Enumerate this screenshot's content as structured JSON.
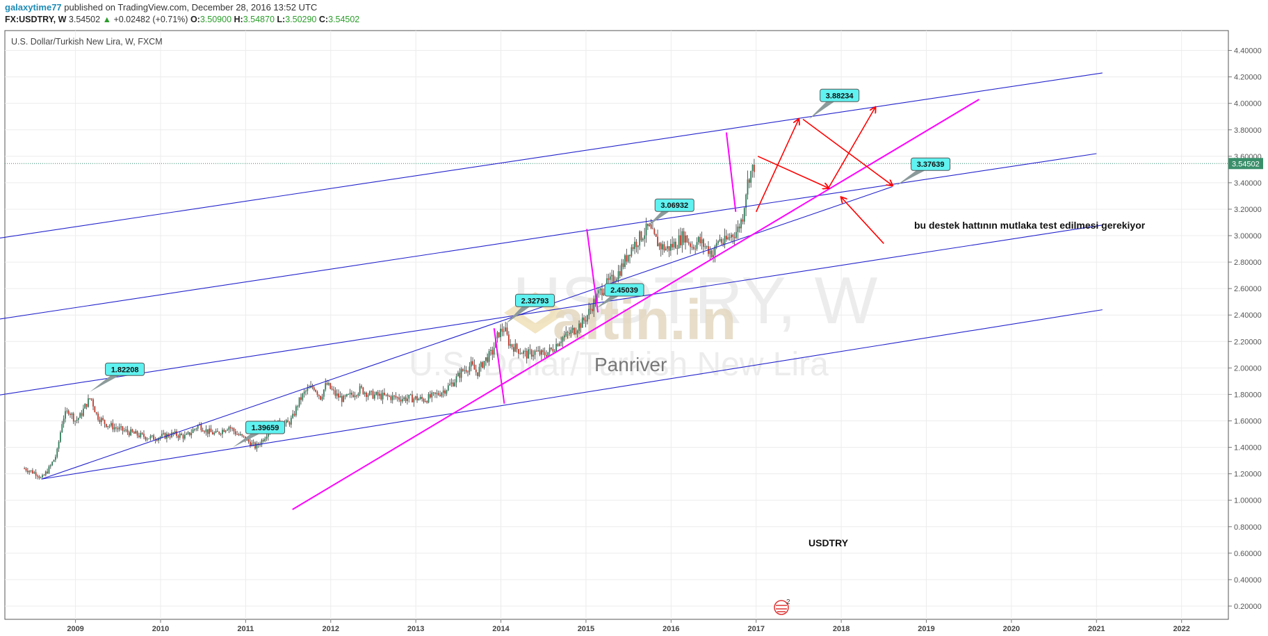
{
  "header": {
    "user": "galaxytime77",
    "published": "published on TradingView.com, December 28, 2016 13:52 UTC",
    "symbol": "FX:USDTRY, W",
    "last": "3.54502",
    "change": "+0.02482 (+0.71%)",
    "o_label": "O:",
    "o_value": "3.50900",
    "h_label": "H:",
    "h_value": "3.54870",
    "l_label": "L:",
    "l_value": "3.50290",
    "c_label": "C:",
    "c_value": "3.54502"
  },
  "chart_data": {
    "type": "candlestick",
    "title": "U.S. Dollar/Turkish New Lira, W, FXCM",
    "watermark_symbol": "USDTRY, W",
    "watermark_name": "U.S. Dollar/Turkish New Lira",
    "logo_text": "altin.in",
    "logo_sub": "Panriver",
    "y_ticks": [
      "0.20000",
      "0.40000",
      "0.60000",
      "0.80000",
      "1.00000",
      "1.20000",
      "1.40000",
      "1.60000",
      "1.80000",
      "2.00000",
      "2.20000",
      "2.40000",
      "2.60000",
      "2.80000",
      "3.00000",
      "3.20000",
      "3.40000",
      "3.60000",
      "3.80000",
      "4.00000",
      "4.20000",
      "4.40000"
    ],
    "ylim": [
      0.1,
      4.55
    ],
    "x_ticks": [
      "2009",
      "2010",
      "2011",
      "2012",
      "2013",
      "2014",
      "2015",
      "2016",
      "2017",
      "2018",
      "2019",
      "2020",
      "2021",
      "2022"
    ],
    "xlim": [
      2008.17,
      2022.55
    ],
    "last_price": "3.54502",
    "price_series": [
      [
        2008.4,
        1.24
      ],
      [
        2008.55,
        1.2
      ],
      [
        2008.6,
        1.16
      ],
      [
        2008.7,
        1.25
      ],
      [
        2008.78,
        1.35
      ],
      [
        2008.85,
        1.62
      ],
      [
        2008.92,
        1.68
      ],
      [
        2009.0,
        1.6
      ],
      [
        2009.06,
        1.64
      ],
      [
        2009.12,
        1.72
      ],
      [
        2009.18,
        1.78
      ],
      [
        2009.25,
        1.64
      ],
      [
        2009.35,
        1.58
      ],
      [
        2009.5,
        1.54
      ],
      [
        2009.6,
        1.52
      ],
      [
        2009.75,
        1.49
      ],
      [
        2009.9,
        1.47
      ],
      [
        2010.0,
        1.48
      ],
      [
        2010.15,
        1.5
      ],
      [
        2010.3,
        1.48
      ],
      [
        2010.45,
        1.57
      ],
      [
        2010.55,
        1.52
      ],
      [
        2010.65,
        1.5
      ],
      [
        2010.8,
        1.56
      ],
      [
        2010.9,
        1.5
      ],
      [
        2011.0,
        1.46
      ],
      [
        2011.08,
        1.42
      ],
      [
        2011.12,
        1.4
      ],
      [
        2011.2,
        1.46
      ],
      [
        2011.3,
        1.56
      ],
      [
        2011.4,
        1.58
      ],
      [
        2011.5,
        1.58
      ],
      [
        2011.55,
        1.62
      ],
      [
        2011.62,
        1.74
      ],
      [
        2011.7,
        1.82
      ],
      [
        2011.8,
        1.86
      ],
      [
        2011.88,
        1.78
      ],
      [
        2011.95,
        1.88
      ],
      [
        2012.05,
        1.8
      ],
      [
        2012.15,
        1.76
      ],
      [
        2012.25,
        1.8
      ],
      [
        2012.35,
        1.84
      ],
      [
        2012.45,
        1.8
      ],
      [
        2012.55,
        1.79
      ],
      [
        2012.7,
        1.78
      ],
      [
        2012.85,
        1.77
      ],
      [
        2013.0,
        1.77
      ],
      [
        2013.1,
        1.76
      ],
      [
        2013.25,
        1.8
      ],
      [
        2013.35,
        1.84
      ],
      [
        2013.45,
        1.9
      ],
      [
        2013.55,
        1.98
      ],
      [
        2013.65,
        2.02
      ],
      [
        2013.72,
        1.96
      ],
      [
        2013.8,
        2.05
      ],
      [
        2013.9,
        2.12
      ],
      [
        2013.97,
        2.26
      ],
      [
        2014.04,
        2.3
      ],
      [
        2014.1,
        2.18
      ],
      [
        2014.2,
        2.14
      ],
      [
        2014.3,
        2.1
      ],
      [
        2014.4,
        2.12
      ],
      [
        2014.5,
        2.1
      ],
      [
        2014.6,
        2.14
      ],
      [
        2014.7,
        2.22
      ],
      [
        2014.8,
        2.26
      ],
      [
        2014.88,
        2.3
      ],
      [
        2014.95,
        2.34
      ],
      [
        2015.0,
        2.38
      ],
      [
        2015.08,
        2.48
      ],
      [
        2015.15,
        2.56
      ],
      [
        2015.22,
        2.62
      ],
      [
        2015.3,
        2.66
      ],
      [
        2015.38,
        2.72
      ],
      [
        2015.45,
        2.8
      ],
      [
        2015.52,
        2.9
      ],
      [
        2015.6,
        2.96
      ],
      [
        2015.68,
        3.02
      ],
      [
        2015.74,
        3.06
      ],
      [
        2015.8,
        2.98
      ],
      [
        2015.88,
        2.92
      ],
      [
        2015.95,
        2.9
      ],
      [
        2016.05,
        2.94
      ],
      [
        2016.15,
        3.0
      ],
      [
        2016.25,
        2.92
      ],
      [
        2016.32,
        2.96
      ],
      [
        2016.4,
        2.92
      ],
      [
        2016.5,
        2.86
      ],
      [
        2016.56,
        2.98
      ],
      [
        2016.62,
        2.94
      ],
      [
        2016.7,
        3.0
      ],
      [
        2016.78,
        3.04
      ],
      [
        2016.84,
        3.14
      ],
      [
        2016.88,
        3.34
      ],
      [
        2016.92,
        3.46
      ],
      [
        2016.96,
        3.5
      ],
      [
        2016.99,
        3.55
      ]
    ],
    "callouts": [
      "1.82208",
      "1.39659",
      "2.32793",
      "2.45039",
      "3.06932",
      "3.88234",
      "3.37639"
    ],
    "annotations": [
      "bu destek hattının mutlaka test edilmesi gerekiyor",
      "USDTRY"
    ],
    "colors": {
      "channel": "#2222cc",
      "trend": "#ff00ff",
      "arrows": "#ff0000",
      "callout_bg": "#5ff2f0",
      "up_candle": "#2e7d5a",
      "down_candle": "#c0392b"
    }
  },
  "bottom_badge": "2"
}
